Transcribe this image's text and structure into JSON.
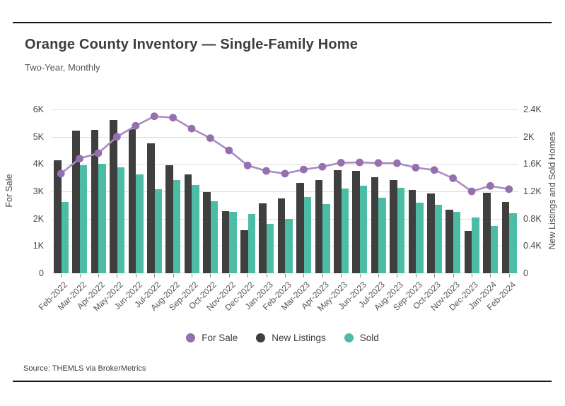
{
  "header": {
    "title": "Orange County Inventory — Single-Family Home",
    "subtitle": "Two-Year, Monthly"
  },
  "source": "Source: THEMLS via BrokerMetrics",
  "colors": {
    "line": "#a78cc5",
    "marker": "#9470ae",
    "new_listings": "#3f3f3f",
    "sold": "#4cbca5",
    "gridline": "#dedede",
    "frame_rule": "#151515"
  },
  "legend": [
    {
      "label": "For Sale",
      "color": "#9470ae"
    },
    {
      "label": "New Listings",
      "color": "#3f3f3f"
    },
    {
      "label": "Sold",
      "color": "#4cbca5"
    }
  ],
  "chart_data": {
    "type": "bar",
    "subtype": "grouped-bars-with-line-overlay",
    "title": "Orange County Inventory — Single-Family Home",
    "subtitle": "Two-Year, Monthly",
    "categories": [
      "Feb-2022",
      "Mar-2022",
      "Apr-2022",
      "May-2022",
      "Jun-2022",
      "Jul-2022",
      "Aug-2022",
      "Sep-2022",
      "Oct-2022",
      "Nov-2022",
      "Dec-2022",
      "Jan-2023",
      "Feb-2023",
      "Mar-2023",
      "Apr-2023",
      "May-2023",
      "Jun-2023",
      "Jul-2023",
      "Aug-2023",
      "Sep-2023",
      "Oct-2023",
      "Nov-2023",
      "Dec-2023",
      "Jan-2024",
      "Feb-2024"
    ],
    "series": [
      {
        "name": "For Sale",
        "type": "line",
        "axis": "left",
        "values": [
          3650,
          4200,
          4400,
          5000,
          5400,
          5750,
          5700,
          5300,
          4950,
          4500,
          3950,
          3750,
          3650,
          3800,
          3900,
          4050,
          4060,
          4040,
          4030,
          3870,
          3780,
          3480,
          3000,
          3200,
          3080
        ]
      },
      {
        "name": "New Listings",
        "type": "bar",
        "axis": "right",
        "values": [
          1660,
          2090,
          2100,
          2240,
          2110,
          1900,
          1580,
          1450,
          1190,
          910,
          630,
          1020,
          1100,
          1320,
          1370,
          1510,
          1500,
          1410,
          1370,
          1220,
          1170,
          930,
          620,
          1180,
          1040
        ]
      },
      {
        "name": "Sold",
        "type": "bar",
        "axis": "right",
        "values": [
          1040,
          1580,
          1600,
          1550,
          1450,
          1230,
          1370,
          1290,
          1060,
          900,
          870,
          720,
          800,
          1120,
          1010,
          1240,
          1280,
          1110,
          1250,
          1030,
          1000,
          900,
          820,
          690,
          880
        ]
      }
    ],
    "left_axis": {
      "label": "For Sale",
      "min": 0,
      "max": 6000,
      "ticks": [
        "0",
        "1K",
        "2K",
        "3K",
        "4K",
        "5K",
        "6K"
      ]
    },
    "right_axis": {
      "label": "New Listings and Sold Homes",
      "min": 0,
      "max": 2400,
      "ticks": [
        "0",
        "0.4K",
        "0.8K",
        "1.2K",
        "1.6K",
        "2K",
        "2.4K"
      ]
    },
    "grid": "horizontal",
    "legend_position": "bottom-center",
    "x_tick_rotation": 45
  }
}
